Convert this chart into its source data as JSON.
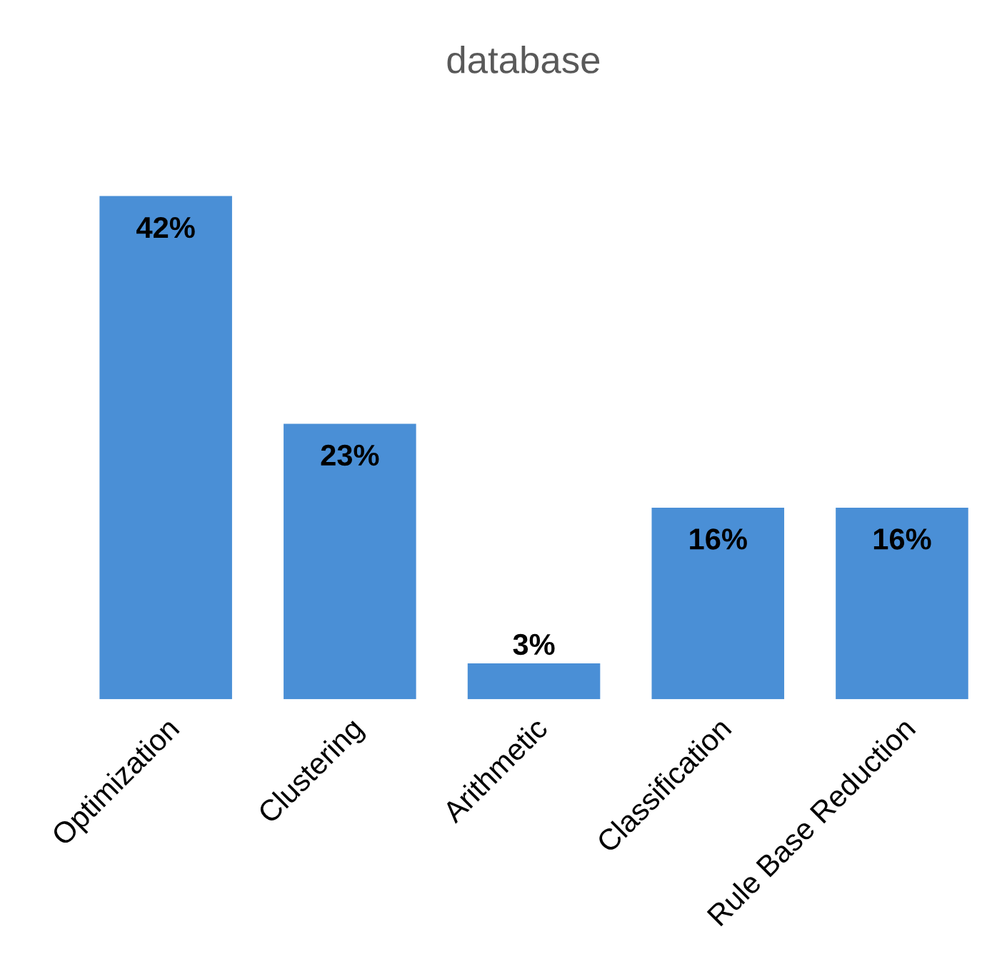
{
  "chart_data": {
    "type": "bar",
    "title": "database",
    "categories": [
      "Optimization",
      "Clustering",
      "Arithmetic",
      "Classification",
      "Rule Base Reduction"
    ],
    "values": [
      42,
      23,
      3,
      16,
      16
    ],
    "color": "#4a8fd6",
    "value_labels": [
      "42%",
      "23%",
      "3%",
      "16%",
      "16%"
    ],
    "grid": false,
    "legend": false
  }
}
